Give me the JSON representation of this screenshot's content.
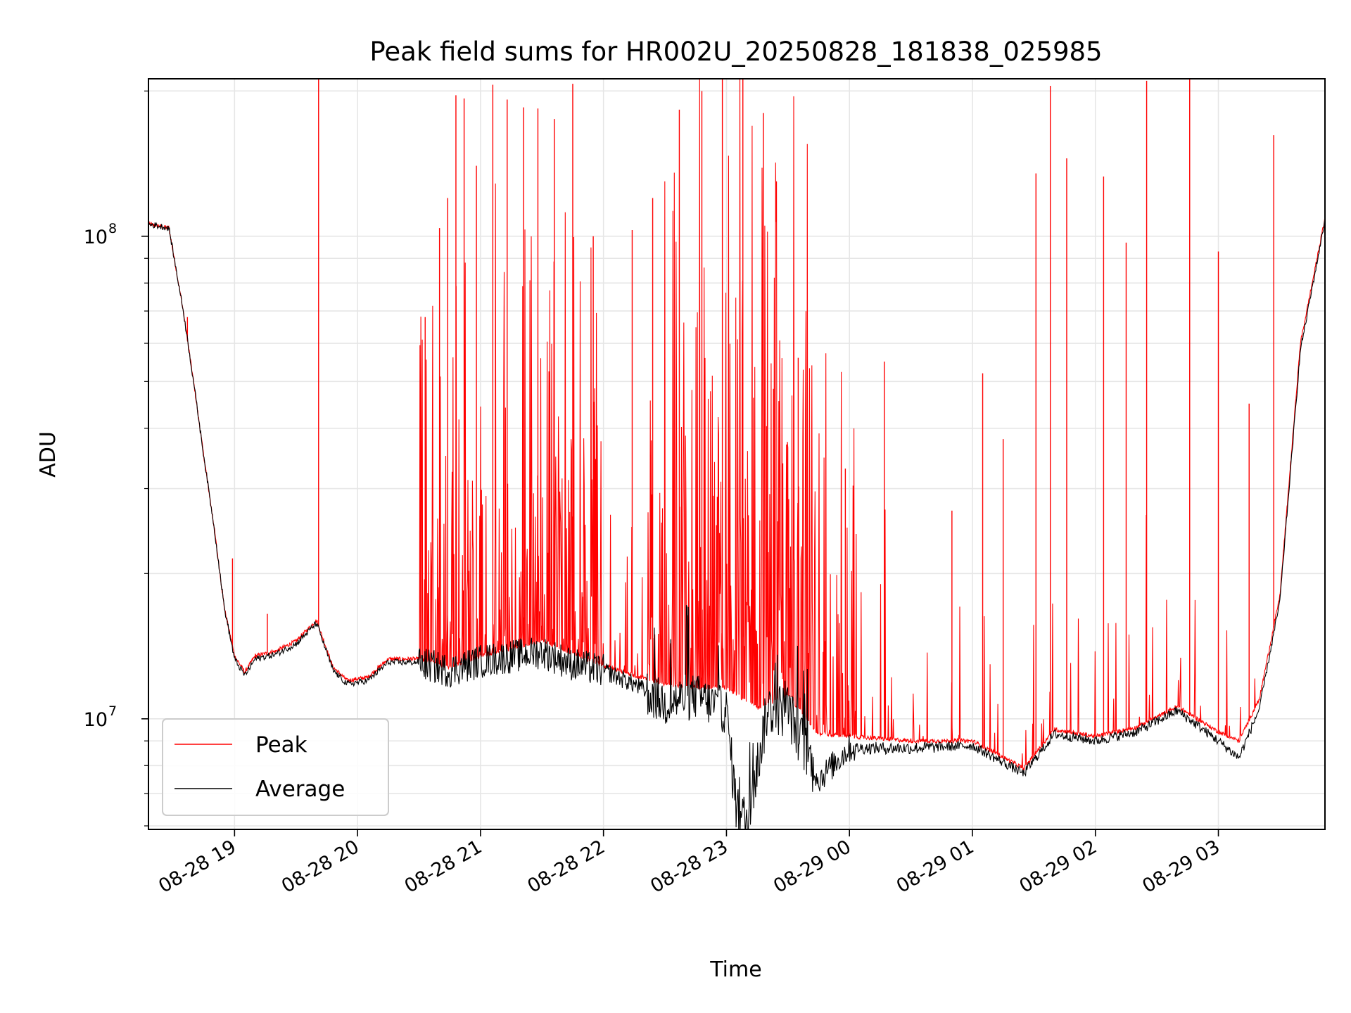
{
  "chart_data": {
    "type": "line",
    "title": "Peak field sums for HR002U_20250828_181838_025985",
    "xlabel": "Time",
    "ylabel": "ADU",
    "x_scale": "time",
    "y_scale": "log",
    "xlim": [
      "2025-08-28 18:18",
      "2025-08-29 03:52"
    ],
    "ylim": [
      5900000,
      212000000
    ],
    "x_ticks": [
      "08-28 19",
      "08-28 20",
      "08-28 21",
      "08-28 22",
      "08-28 23",
      "08-29 00",
      "08-29 01",
      "08-29 02",
      "08-29 03"
    ],
    "y_ticks": [
      {
        "base": "10",
        "exp": "7",
        "value": 10000000
      },
      {
        "base": "10",
        "exp": "8",
        "value": 100000000
      }
    ],
    "grid": true,
    "legend": {
      "position": "lower-left",
      "entries": [
        "Peak",
        "Average"
      ]
    },
    "series": [
      {
        "name": "Peak",
        "color": "#ff0000",
        "baseline": {
          "x": [
            "2025-08-28 18:18",
            "2025-08-28 18:28",
            "2025-08-28 18:35",
            "2025-08-28 18:40",
            "2025-08-28 18:45",
            "2025-08-28 18:50",
            "2025-08-28 18:55",
            "2025-08-28 19:00",
            "2025-08-28 19:05",
            "2025-08-28 19:10",
            "2025-08-28 19:20",
            "2025-08-28 19:30",
            "2025-08-28 19:40",
            "2025-08-28 19:48",
            "2025-08-28 19:55",
            "2025-08-28 20:05",
            "2025-08-28 20:15",
            "2025-08-28 20:30",
            "2025-08-28 20:45",
            "2025-08-28 21:00",
            "2025-08-28 21:30",
            "2025-08-28 22:00",
            "2025-08-28 22:15",
            "2025-08-28 22:30",
            "2025-08-28 22:45",
            "2025-08-28 23:00",
            "2025-08-28 23:15",
            "2025-08-28 23:30",
            "2025-08-28 23:45",
            "2025-08-29 00:00",
            "2025-08-29 00:30",
            "2025-08-29 01:00",
            "2025-08-29 01:25",
            "2025-08-29 01:40",
            "2025-08-29 02:00",
            "2025-08-29 02:20",
            "2025-08-29 02:40",
            "2025-08-29 03:00",
            "2025-08-29 03:10",
            "2025-08-29 03:20",
            "2025-08-29 03:30",
            "2025-08-29 03:40",
            "2025-08-29 03:52"
          ],
          "y": [
            106000000,
            104000000,
            70000000,
            50000000,
            35000000,
            25000000,
            17000000,
            13500000,
            12500000,
            13500000,
            13800000,
            14500000,
            16000000,
            12800000,
            12000000,
            12200000,
            13300000,
            13300000,
            12800000,
            13500000,
            14500000,
            12900000,
            12300000,
            11800000,
            11600000,
            11600000,
            10500000,
            11200000,
            9300000,
            9200000,
            9000000,
            9000000,
            7900000,
            9500000,
            9200000,
            9600000,
            10600000,
            9400000,
            9000000,
            11000000,
            18000000,
            60000000,
            109000000
          ]
        },
        "spikes": [
          {
            "x": "2025-08-28 18:37",
            "y": 68000000
          },
          {
            "x": "2025-08-28 18:59",
            "y": 21500000
          },
          {
            "x": "2025-08-28 19:16",
            "y": 16500000
          },
          {
            "x": "2025-08-28 19:41",
            "y": 212000000
          },
          {
            "x": "2025-08-28 20:33",
            "y": 68000000
          },
          {
            "x": "2025-08-28 20:40",
            "y": 104000000
          },
          {
            "x": "2025-08-28 20:44",
            "y": 120000000
          },
          {
            "x": "2025-08-28 20:48",
            "y": 196000000
          },
          {
            "x": "2025-08-28 20:52",
            "y": 193000000
          },
          {
            "x": "2025-08-28 20:58",
            "y": 140000000
          },
          {
            "x": "2025-08-28 21:06",
            "y": 206000000
          },
          {
            "x": "2025-08-28 21:13",
            "y": 192000000
          },
          {
            "x": "2025-08-28 21:21",
            "y": 185000000
          },
          {
            "x": "2025-08-28 21:28",
            "y": 184000000
          },
          {
            "x": "2025-08-28 21:36",
            "y": 175000000
          },
          {
            "x": "2025-08-28 21:45",
            "y": 207000000
          },
          {
            "x": "2025-08-28 21:55",
            "y": 100000000
          },
          {
            "x": "2025-08-28 22:14",
            "y": 103000000
          },
          {
            "x": "2025-08-28 22:24",
            "y": 120000000
          },
          {
            "x": "2025-08-28 22:37",
            "y": 183000000
          },
          {
            "x": "2025-08-28 22:48",
            "y": 200000000
          },
          {
            "x": "2025-08-28 22:58",
            "y": 212000000
          },
          {
            "x": "2025-08-28 23:08",
            "y": 212000000
          },
          {
            "x": "2025-08-28 23:18",
            "y": 180000000
          },
          {
            "x": "2025-08-28 23:35",
            "y": 56000000
          },
          {
            "x": "2025-08-28 23:58",
            "y": 33000000
          },
          {
            "x": "2025-08-29 00:17",
            "y": 55000000
          },
          {
            "x": "2025-08-29 00:50",
            "y": 27000000
          },
          {
            "x": "2025-08-29 01:05",
            "y": 52000000
          },
          {
            "x": "2025-08-29 01:15",
            "y": 38000000
          },
          {
            "x": "2025-08-29 01:31",
            "y": 135000000
          },
          {
            "x": "2025-08-29 01:38",
            "y": 205000000
          },
          {
            "x": "2025-08-29 01:46",
            "y": 145000000
          },
          {
            "x": "2025-08-29 02:04",
            "y": 133000000
          },
          {
            "x": "2025-08-29 02:15",
            "y": 97000000
          },
          {
            "x": "2025-08-29 02:25",
            "y": 210000000
          },
          {
            "x": "2025-08-29 02:46",
            "y": 212000000
          },
          {
            "x": "2025-08-29 03:00",
            "y": 93000000
          },
          {
            "x": "2025-08-29 03:15",
            "y": 45000000
          },
          {
            "x": "2025-08-29 03:27",
            "y": 162000000
          }
        ]
      },
      {
        "name": "Average",
        "color": "#000000",
        "x": [
          "2025-08-28 18:18",
          "2025-08-28 18:28",
          "2025-08-28 18:35",
          "2025-08-28 18:40",
          "2025-08-28 18:45",
          "2025-08-28 18:50",
          "2025-08-28 18:55",
          "2025-08-28 19:00",
          "2025-08-28 19:05",
          "2025-08-28 19:10",
          "2025-08-28 19:20",
          "2025-08-28 19:30",
          "2025-08-28 19:40",
          "2025-08-28 19:48",
          "2025-08-28 19:55",
          "2025-08-28 20:05",
          "2025-08-28 20:15",
          "2025-08-28 20:30",
          "2025-08-28 20:45",
          "2025-08-28 21:00",
          "2025-08-28 21:15",
          "2025-08-28 21:30",
          "2025-08-28 21:45",
          "2025-08-28 22:00",
          "2025-08-28 22:15",
          "2025-08-28 22:30",
          "2025-08-28 22:45",
          "2025-08-28 23:00",
          "2025-08-28 23:05",
          "2025-08-28 23:10",
          "2025-08-28 23:15",
          "2025-08-28 23:20",
          "2025-08-28 23:30",
          "2025-08-28 23:45",
          "2025-08-29 00:00",
          "2025-08-29 00:30",
          "2025-08-29 01:00",
          "2025-08-29 01:25",
          "2025-08-29 01:40",
          "2025-08-29 02:00",
          "2025-08-29 02:20",
          "2025-08-29 02:40",
          "2025-08-29 03:00",
          "2025-08-29 03:10",
          "2025-08-29 03:20",
          "2025-08-29 03:30",
          "2025-08-29 03:40",
          "2025-08-29 03:52"
        ],
        "y": [
          106000000,
          104000000,
          70000000,
          50000000,
          35000000,
          25000000,
          17000000,
          13300000,
          12300000,
          13300000,
          13600000,
          14300000,
          15800000,
          12600000,
          11800000,
          12000000,
          13100000,
          13100000,
          12600000,
          13200000,
          13500000,
          13800000,
          13000000,
          12600000,
          11800000,
          10800000,
          11200000,
          10400000,
          6500000,
          6100000,
          8000000,
          10500000,
          10500000,
          7500000,
          8700000,
          8700000,
          8800000,
          7700000,
          9300000,
          9000000,
          9400000,
          10400000,
          9000000,
          8300000,
          10500000,
          17500000,
          58000000,
          108000000
        ]
      }
    ]
  }
}
